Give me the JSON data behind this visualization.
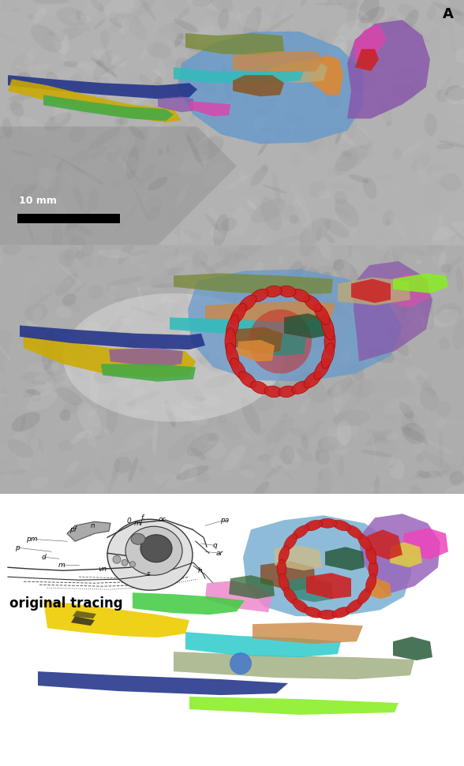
{
  "fig_width": 5.88,
  "fig_height": 9.71,
  "dpi": 100,
  "bg_color": "#ffffff",
  "panel_A_label": "A",
  "scale_bar_text": "10 mm",
  "original_tracing_text": "original tracing",
  "colors": {
    "blue_cranium": "#6699cc",
    "purple_squamosal": "#8855aa",
    "yellow_premaxilla": "#ccaa00",
    "green_nasal": "#44aa44",
    "dark_blue_dentary": "#223388",
    "cyan_hyoid": "#33bbbb",
    "orange_lacrimal": "#dd8833",
    "brown_palatine": "#885522",
    "magenta_jugal": "#dd44aa",
    "tan_ectopterygoid": "#bbaa77",
    "olive_splenial": "#778833",
    "red_scleral": "#cc2222",
    "pink_magenta": "#ee66cc",
    "teal": "#338877",
    "lime_green": "#88ee22",
    "dark_green": "#225533",
    "pale_tan": "#ccbb88",
    "sage_green": "#99aa77",
    "orange_tan": "#cc8844",
    "magenta_pink": "#cc55aa",
    "light_purple": "#aa88cc"
  }
}
